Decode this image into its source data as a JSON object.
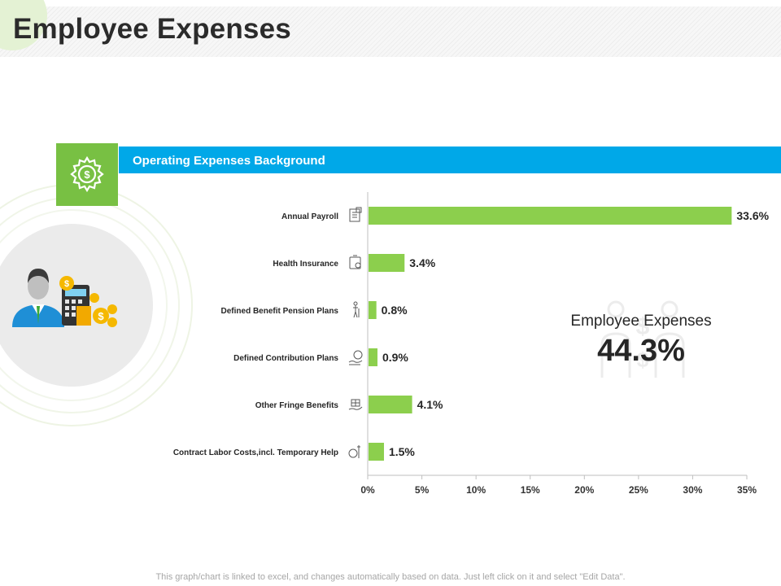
{
  "page": {
    "title": "Employee Expenses",
    "header_label": "Operating Expenses Background",
    "footnote": "This graph/chart is linked to excel, and changes automatically based on data. Just left click on it and select \"Edit Data\"."
  },
  "kpi": {
    "label": "Employee Expenses",
    "value": "44.3%"
  },
  "colors": {
    "bar": "#8ccf4d",
    "header": "#00a8e8",
    "accent_green": "#78c043"
  },
  "icons": [
    "gear-dollar-icon",
    "businessman-money-icon",
    "people-money-icon"
  ],
  "chart_data": {
    "type": "bar",
    "orientation": "horizontal",
    "categories": [
      "Annual Payroll",
      "Health Insurance",
      "Defined Benefit Pension Plans",
      "Defined Contribution Plans",
      "Other Fringe Benefits",
      "Contract Labor Costs,incl. Temporary Help"
    ],
    "category_icons": [
      "payroll-icon",
      "health-insurance-icon",
      "pension-icon",
      "contribution-icon",
      "fringe-benefits-icon",
      "contract-labor-icon"
    ],
    "values": [
      33.6,
      3.4,
      0.8,
      0.9,
      4.1,
      1.5
    ],
    "value_labels": [
      "33.6%",
      "3.4%",
      "0.8%",
      "0.9%",
      "4.1%",
      "1.5%"
    ],
    "xlim": [
      0,
      35
    ],
    "xticks": [
      0,
      5,
      10,
      15,
      20,
      25,
      30,
      35
    ],
    "xtick_labels": [
      "0%",
      "5%",
      "10%",
      "15%",
      "20%",
      "25%",
      "30%",
      "35%"
    ],
    "title": "",
    "xlabel": "",
    "ylabel": "",
    "grid": false
  }
}
